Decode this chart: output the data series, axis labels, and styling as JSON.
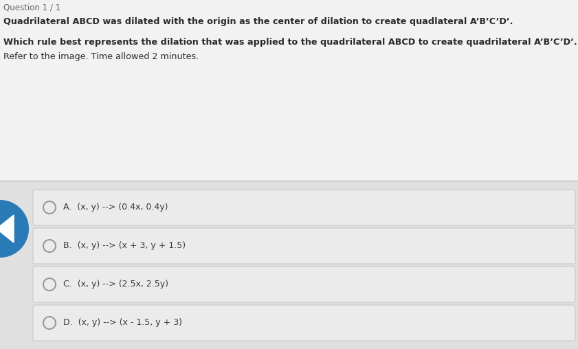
{
  "title_question": "Question 1 / 1",
  "line1": "Quadrilateral ABCD was dilated with the origin as the center of dilation to create quadlateral A’B’C’D’.",
  "line2": "Which rule best represents the dilation that was applied to the quadrilateral ABCD to create quadrilateral A’B’C’D’.",
  "line3": "Refer to the image. Time allowed 2 minutes.",
  "options": [
    "A.  (x, y) --> (0.4x, 0.4y)",
    "B.  (x, y) --> (x + 3, y + 1.5)",
    "C.  (x, y) --> (2.5x, 2.5y)",
    "D.  (x, y) --> (x - 1.5, y + 3)"
  ],
  "page_bg": "#d8d8d8",
  "top_bg": "#f2f2f2",
  "options_area_bg": "#e0e0e0",
  "option_row_light": "#ebebeb",
  "option_row_dark": "#dedede",
  "separator_color": "#c0c0c0",
  "text_color": "#2a2a2a",
  "option_text_color": "#3a3a3a",
  "title_color": "#666666",
  "arrow_circle_color": "#2a7ab5",
  "radio_color": "#999999"
}
